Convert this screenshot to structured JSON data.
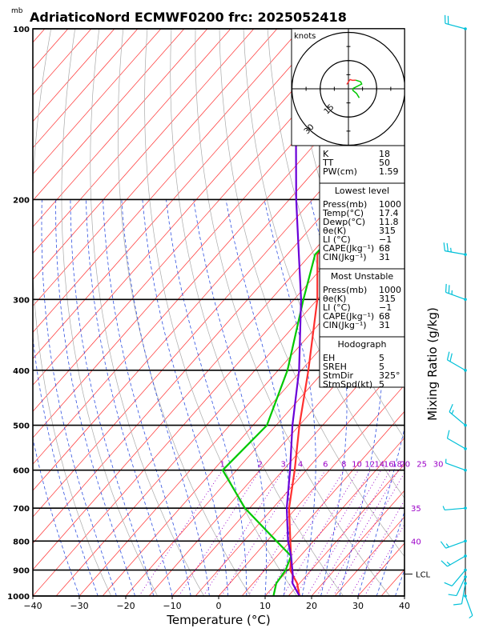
{
  "header": {
    "title": "AdriaticoNord ECMWF0200 frc: 2025052418",
    "unit_mb": "mb"
  },
  "chart_data": {
    "type": "line",
    "title": "AdriaticoNord ECMWF0200 frc: 2025052418",
    "xlabel": "Temperature (°C)",
    "ylabel": "Mixing Ratio (g/kg)",
    "x_ticks": [
      "−40",
      "−30",
      "−20",
      "−10",
      "0",
      "10",
      "20",
      "30",
      "40"
    ],
    "x_tick_values": [
      -40,
      -30,
      -20,
      -10,
      0,
      10,
      20,
      30,
      40
    ],
    "xlim": [
      -40,
      40
    ],
    "y_scale": "log",
    "ylim": [
      1000,
      100
    ],
    "y_ticks": [
      "100",
      "200",
      "300",
      "400",
      "500",
      "600",
      "700",
      "800",
      "900",
      "1000"
    ],
    "y_tick_values": [
      100,
      200,
      300,
      400,
      500,
      600,
      700,
      800,
      900,
      1000
    ],
    "mixing_ratio_labels": [
      "1",
      "2",
      "3",
      "4",
      "6",
      "8",
      "10",
      "12",
      "14",
      "16",
      "18",
      "20",
      "25",
      "30"
    ],
    "mixing_ratio_values": [
      1,
      2,
      3,
      4,
      6,
      8,
      10,
      12,
      14,
      16,
      18,
      20,
      25,
      30
    ],
    "theta_labels": [
      "35",
      "40"
    ],
    "lcl_label": "LCL",
    "lcl_pressure": 915,
    "series": [
      {
        "name": "Temperature",
        "color": "#ff3030",
        "points": [
          [
            1000,
            17.4
          ],
          [
            950,
            14.5
          ],
          [
            925,
            12.5
          ],
          [
            900,
            10.5
          ],
          [
            850,
            8.0
          ],
          [
            800,
            5.0
          ],
          [
            700,
            -1.5
          ],
          [
            600,
            -7.5
          ],
          [
            500,
            -15.0
          ],
          [
            400,
            -23.5
          ],
          [
            300,
            -35.0
          ],
          [
            250,
            -43.5
          ],
          [
            200,
            -45.0
          ],
          [
            150,
            -42.0
          ],
          [
            100,
            -37.0
          ]
        ]
      },
      {
        "name": "Dewpoint",
        "color": "#00c800",
        "points": [
          [
            1000,
            11.8
          ],
          [
            950,
            10.0
          ],
          [
            900,
            9.5
          ],
          [
            850,
            8.0
          ],
          [
            800,
            2.0
          ],
          [
            700,
            -11.0
          ],
          [
            600,
            -23.0
          ],
          [
            500,
            -22.0
          ],
          [
            400,
            -28.0
          ],
          [
            300,
            -38.0
          ],
          [
            250,
            -44.0
          ],
          [
            200,
            -43.0
          ],
          [
            150,
            -44.0
          ],
          [
            100,
            -44.0
          ]
        ]
      },
      {
        "name": "Parcel",
        "color": "#6a00d8",
        "points": [
          [
            1000,
            17.4
          ],
          [
            950,
            13.5
          ],
          [
            915,
            11.8
          ],
          [
            850,
            8.0
          ],
          [
            800,
            4.5
          ],
          [
            700,
            -2.0
          ],
          [
            600,
            -8.5
          ],
          [
            500,
            -16.5
          ],
          [
            400,
            -25.5
          ],
          [
            300,
            -38.5
          ],
          [
            250,
            -47.5
          ],
          [
            200,
            -58.5
          ],
          [
            150,
            -72.0
          ],
          [
            120,
            -80.0
          ]
        ]
      }
    ],
    "wind_profile": [
      {
        "p": 1000,
        "dir": 160,
        "spd": 5
      },
      {
        "p": 950,
        "dir": 190,
        "spd": 10
      },
      {
        "p": 925,
        "dir": 205,
        "spd": 10
      },
      {
        "p": 900,
        "dir": 220,
        "spd": 12
      },
      {
        "p": 850,
        "dir": 240,
        "spd": 15
      },
      {
        "p": 800,
        "dir": 250,
        "spd": 15
      },
      {
        "p": 700,
        "dir": 265,
        "spd": 5
      },
      {
        "p": 600,
        "dir": 290,
        "spd": 5
      },
      {
        "p": 550,
        "dir": 300,
        "spd": 10
      },
      {
        "p": 500,
        "dir": 310,
        "spd": 15
      },
      {
        "p": 400,
        "dir": 300,
        "spd": 20
      },
      {
        "p": 300,
        "dir": 290,
        "spd": 25
      },
      {
        "p": 250,
        "dir": 280,
        "spd": 25
      },
      {
        "p": 100,
        "dir": 285,
        "spd": 20
      }
    ],
    "hodograph": {
      "unit": "knots",
      "ring_labels": [
        "15",
        "30",
        "45"
      ],
      "ring_values": [
        15,
        30,
        45
      ]
    }
  },
  "indices": {
    "top": [
      {
        "label": "K",
        "value": "18"
      },
      {
        "label": "TT",
        "value": "50"
      },
      {
        "label": "PW(cm)",
        "value": "1.59"
      }
    ],
    "lowest_level": {
      "heading": "Lowest level",
      "rows": [
        {
          "label": "Press(mb)",
          "value": "1000"
        },
        {
          "label": "Temp(°C)",
          "value": "17.4"
        },
        {
          "label": "Dewp(°C)",
          "value": "11.8"
        },
        {
          "label": "θe(K)",
          "value": "315"
        },
        {
          "label": "LI (°C)",
          "value": "−1"
        },
        {
          "label": "CAPE(Jkg⁻¹)",
          "value": "68"
        },
        {
          "label": "CIN(Jkg⁻¹)",
          "value": "31"
        }
      ]
    },
    "most_unstable": {
      "heading": "Most Unstable",
      "rows": [
        {
          "label": "Press(mb)",
          "value": "1000"
        },
        {
          "label": "θe(K)",
          "value": "315"
        },
        {
          "label": "LI (°C)",
          "value": "−1"
        },
        {
          "label": "CAPE(Jkg⁻¹)",
          "value": "68"
        },
        {
          "label": "CIN(Jkg⁻¹)",
          "value": "31"
        }
      ]
    },
    "hodograph_box": {
      "heading": "Hodograph",
      "rows": [
        {
          "label": "EH",
          "value": "5"
        },
        {
          "label": "SREH",
          "value": "5"
        },
        {
          "label": "StmDir",
          "value": "325°"
        },
        {
          "label": "StmSpd(kt)",
          "value": "5"
        }
      ]
    }
  },
  "colors": {
    "isotherm": "#ff3030",
    "dry_adiabat": "#aaaaaa",
    "moist_adiabat": "#3050e0",
    "mixing_ratio": "#9b00c8",
    "barb": "#00c0d8",
    "temperature": "#ff3030",
    "dewpoint": "#00c800",
    "parcel": "#6a00d8"
  }
}
